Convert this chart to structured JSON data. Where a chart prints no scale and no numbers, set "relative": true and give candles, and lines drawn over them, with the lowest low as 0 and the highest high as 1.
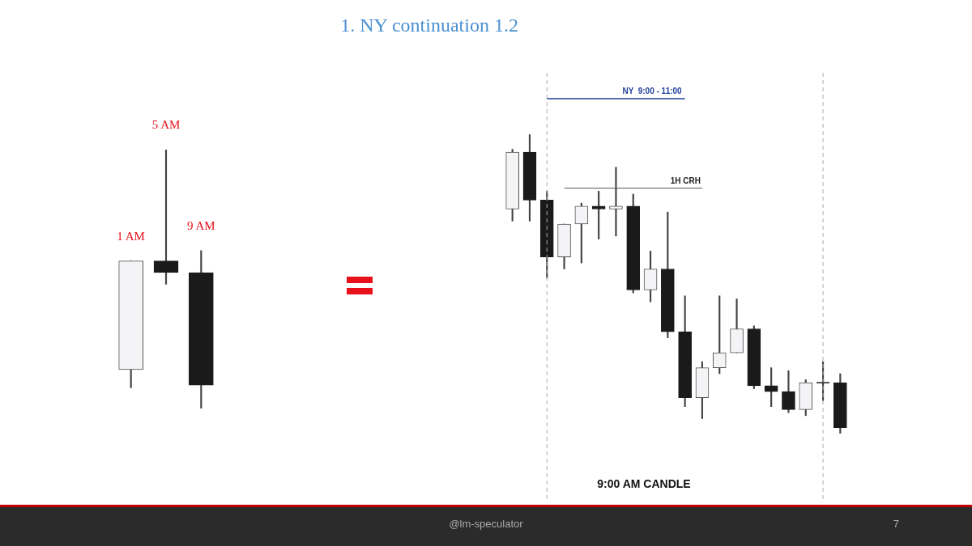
{
  "chart_data": [
    {
      "type": "candlestick",
      "relative": true,
      "categories": [
        "1 AM",
        "5 AM",
        "9 AM"
      ],
      "ohlc": [
        [
          0.15,
          0.57,
          0.08,
          0.57
        ],
        [
          0.57,
          1,
          0.48,
          0.525
        ],
        [
          0.525,
          0.61,
          0,
          0.09
        ]
      ]
    },
    {
      "type": "candlestick",
      "title": "1. NY continuation 1.2",
      "relative": true,
      "xlabel": "9:00 AM CANDLE",
      "categories": [
        null,
        null,
        null,
        null,
        null,
        null,
        null,
        null,
        null,
        null,
        null,
        null,
        null,
        null,
        null,
        null,
        null,
        null,
        null,
        null
      ],
      "ohlc": [
        [
          0.75,
          0.95,
          0.71,
          0.94
        ],
        [
          0.94,
          1,
          0.71,
          0.78
        ],
        [
          0.78,
          0.81,
          0.52,
          0.59
        ],
        [
          0.59,
          0.7,
          0.55,
          0.7
        ],
        [
          0.7,
          0.77,
          0.57,
          0.76
        ],
        [
          0.76,
          0.81,
          0.65,
          0.75
        ],
        [
          0.75,
          0.89,
          0.66,
          0.76
        ],
        [
          0.76,
          0.8,
          0.47,
          0.48
        ],
        [
          0.48,
          0.61,
          0.44,
          0.55
        ],
        [
          0.55,
          0.74,
          0.32,
          0.34
        ],
        [
          0.34,
          0.46,
          0.09,
          0.12
        ],
        [
          0.12,
          0.24,
          0.05,
          0.22
        ],
        [
          0.22,
          0.46,
          0.2,
          0.27
        ],
        [
          0.27,
          0.45,
          0.27,
          0.35
        ],
        [
          0.35,
          0.36,
          0.15,
          0.16
        ],
        [
          0.16,
          0.22,
          0.09,
          0.14
        ],
        [
          0.14,
          0.21,
          0.07,
          0.08
        ],
        [
          0.08,
          0.18,
          0.06,
          0.17
        ],
        [
          0.17,
          0.24,
          0.11,
          0.17
        ],
        [
          0.17,
          0.2,
          0,
          0.02
        ]
      ],
      "ref_lines": [
        {
          "axis": "y",
          "value": 0.82,
          "label": "1H CRH",
          "color": "#555555"
        }
      ],
      "annotations": [
        "NY  9:00 - 11:00",
        "@lm-speculator",
        "7"
      ]
    }
  ]
}
